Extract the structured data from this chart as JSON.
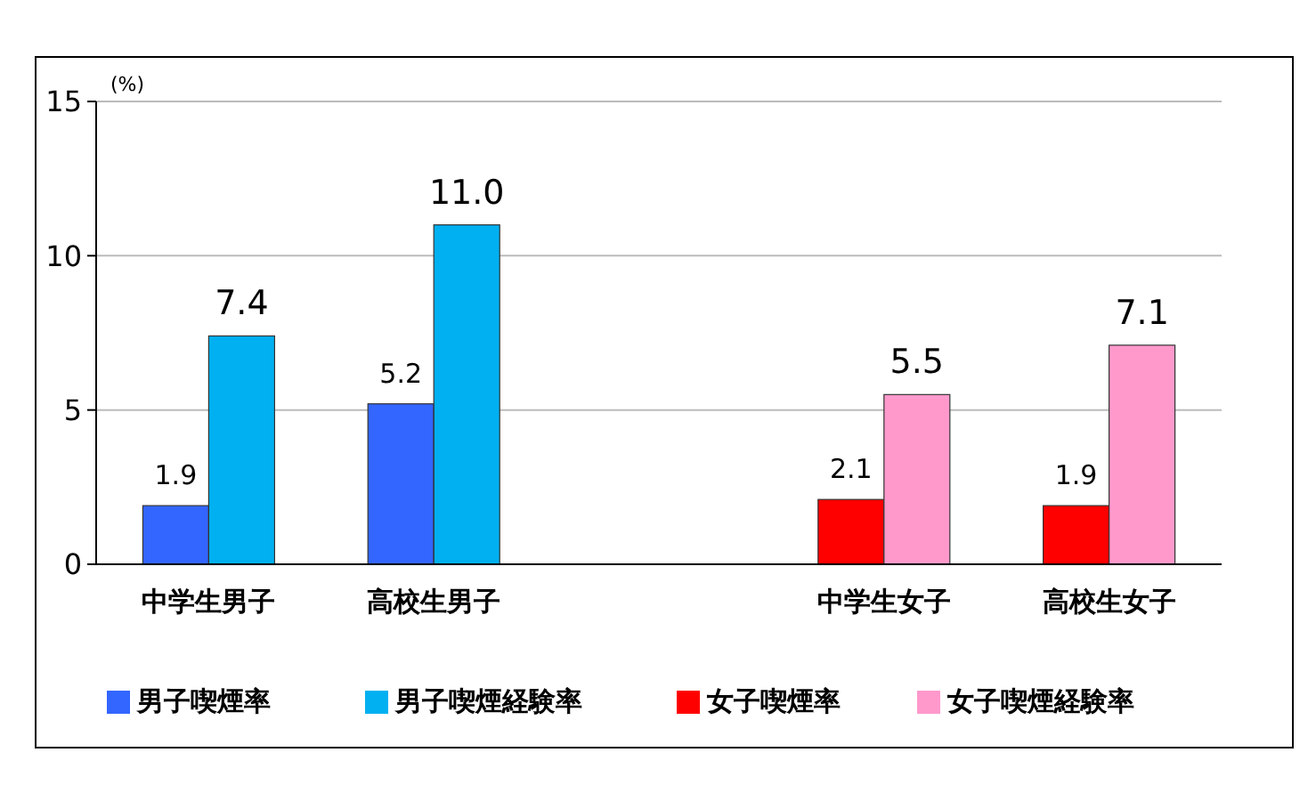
{
  "chart_data": {
    "type": "bar",
    "ylabel": "(%)",
    "categories": [
      "中学生男子",
      "高校生男子",
      null,
      "中学生女子",
      "高校生女子"
    ],
    "series": [
      {
        "name": "男子喫煙率",
        "color": "#3366ff",
        "values": [
          1.9,
          5.2,
          null,
          null,
          null
        ],
        "value_labels": [
          "1.9",
          "5.2",
          null,
          null,
          null
        ]
      },
      {
        "name": "男子喫煙経験率",
        "color": "#00b0f0",
        "values": [
          7.4,
          11.0,
          null,
          null,
          null
        ],
        "value_labels": [
          "7.4",
          "11.0",
          null,
          null,
          null
        ]
      },
      {
        "name": "女子喫煙率",
        "color": "#ff0000",
        "values": [
          null,
          null,
          null,
          2.1,
          1.9
        ],
        "value_labels": [
          null,
          null,
          null,
          "2.1",
          "1.9"
        ]
      },
      {
        "name": "女子喫煙経験率",
        "color": "#ff99cc",
        "values": [
          null,
          null,
          null,
          5.5,
          7.1
        ],
        "value_labels": [
          null,
          null,
          null,
          "5.5",
          "7.1"
        ]
      }
    ],
    "ylim": [
      0,
      15
    ],
    "yticks": [
      0,
      5,
      10,
      15
    ],
    "grid": "y",
    "legend": "bottom"
  }
}
